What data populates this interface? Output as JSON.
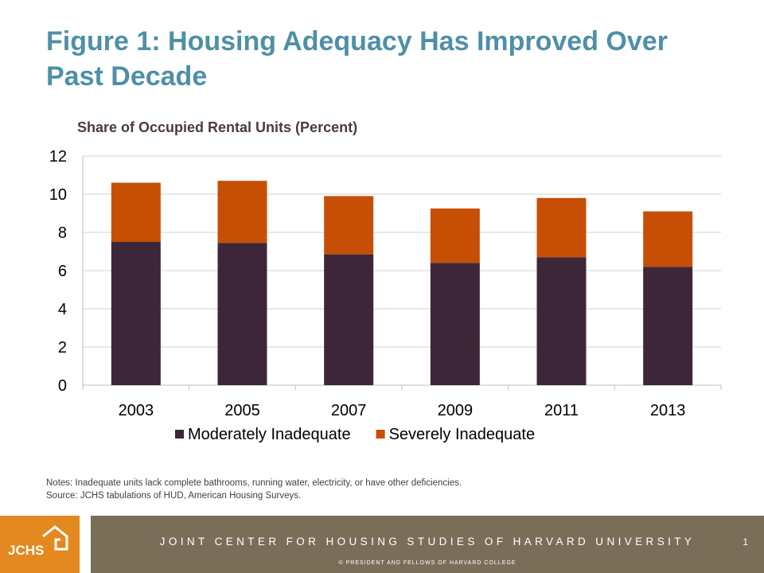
{
  "slide": {
    "title": "Figure 1: Housing Adequacy Has Improved Over Past Decade",
    "notes": "Notes: Inadequate  units lack complete bathrooms, running water, electricity, or have other deficiencies.",
    "source": "Source: JCHS  tabulations of HUD, American Housing Surveys.",
    "page_number": "1"
  },
  "footer": {
    "logo_text": "JCHS",
    "org_name": "JOINT CENTER FOR HOUSING STUDIES OF HARVARD UNIVERSITY",
    "copyright": "© PRESIDENT  AND FELLOWS  OF  HARVARD  COLLEGE",
    "colors": {
      "logo_bg": "#e4891f",
      "bar_bg": "#7a6e59"
    }
  },
  "chart_data": {
    "type": "bar",
    "stacked": true,
    "title": "Share of Occupied Rental Units (Percent)",
    "xlabel": "",
    "ylabel": "",
    "categories": [
      "2003",
      "2005",
      "2007",
      "2009",
      "2011",
      "2013"
    ],
    "series": [
      {
        "name": "Moderately Inadequate",
        "color": "#3d2638",
        "values": [
          7.5,
          7.45,
          6.85,
          6.4,
          6.7,
          6.2
        ]
      },
      {
        "name": "Severely Inadequate",
        "color": "#c64f05",
        "values": [
          3.1,
          3.25,
          3.05,
          2.85,
          3.1,
          2.9
        ]
      }
    ],
    "ylim": [
      0,
      12
    ],
    "yticks": [
      "0",
      "2",
      "4",
      "6",
      "8",
      "10",
      "12"
    ],
    "grid": true,
    "legend_position": "bottom"
  }
}
